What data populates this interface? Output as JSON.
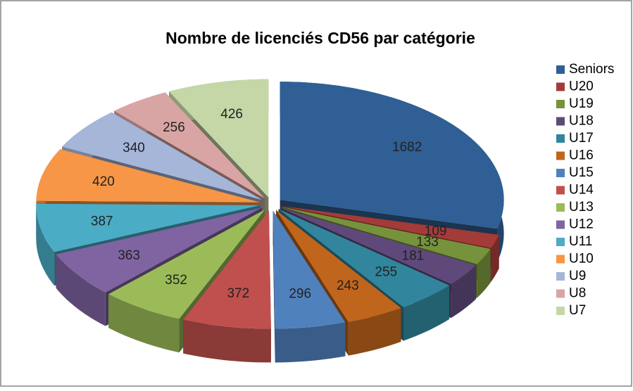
{
  "chart_data": {
    "type": "pie3d",
    "title": "Nombre de licenciés CD56 par catégorie",
    "categories": [
      "Seniors",
      "U20",
      "U19",
      "U18",
      "U17",
      "U16",
      "U15",
      "U14",
      "U13",
      "U12",
      "U11",
      "U10",
      "U9",
      "U8",
      "U7"
    ],
    "values": [
      1682,
      109,
      133,
      181,
      255,
      243,
      296,
      372,
      352,
      363,
      387,
      420,
      340,
      256,
      426
    ],
    "colors": [
      "#2f5f94",
      "#a33b38",
      "#76923c",
      "#5f497a",
      "#31859c",
      "#c0651c",
      "#4f81bd",
      "#c0504d",
      "#9bbb59",
      "#8064a2",
      "#4bacc6",
      "#f79646",
      "#a5b6d9",
      "#d9a5a4",
      "#c5d7a6"
    ],
    "legend": "right"
  }
}
